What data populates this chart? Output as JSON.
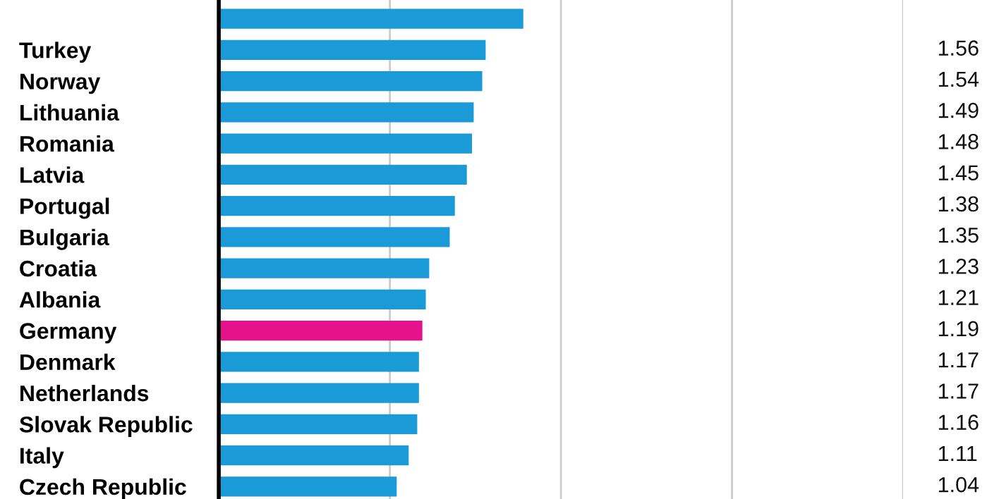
{
  "chart_data": {
    "type": "bar",
    "orientation": "horizontal",
    "categories": [
      null,
      "Turkey",
      "Norway",
      "Lithuania",
      "Romania",
      "Latvia",
      "Portugal",
      "Bulgaria",
      "Croatia",
      "Albania",
      "Germany",
      "Denmark",
      "Netherlands",
      "Slovak Republic",
      "Italy",
      "Czech Republic"
    ],
    "values": [
      1.78,
      1.56,
      1.54,
      1.49,
      1.48,
      1.45,
      1.38,
      1.35,
      1.23,
      1.21,
      1.19,
      1.17,
      1.17,
      1.16,
      1.11,
      1.04
    ],
    "value_labels": [
      null,
      "1.56",
      "1.54",
      "1.49",
      "1.48",
      "1.45",
      "1.38",
      "1.35",
      "1.23",
      "1.21",
      "1.19",
      "1.17",
      "1.17",
      "1.16",
      "1.11",
      "1.04"
    ],
    "colors": [
      "#1a9ad6",
      "#1a9ad6",
      "#1a9ad6",
      "#1a9ad6",
      "#1a9ad6",
      "#1a9ad6",
      "#1a9ad6",
      "#1a9ad6",
      "#1a9ad6",
      "#1a9ad6",
      "#e6128c",
      "#1a9ad6",
      "#1a9ad6",
      "#1a9ad6",
      "#1a9ad6",
      "#1a9ad6"
    ],
    "xlim": [
      0,
      4
    ],
    "xticks": [
      {
        "value": 1,
        "label": null
      },
      {
        "value": 2,
        "label": null
      },
      {
        "value": 3,
        "label": null
      },
      {
        "value": 4,
        "label": null
      }
    ],
    "grid": "x"
  }
}
